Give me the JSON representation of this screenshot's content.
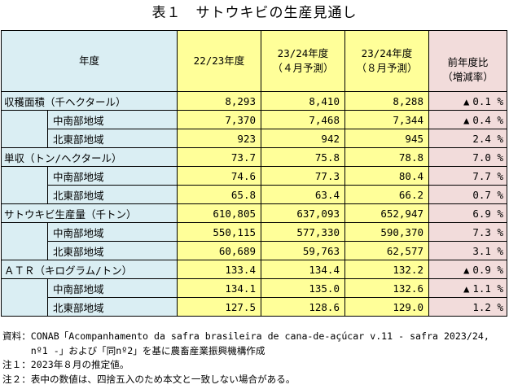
{
  "title": "表１　サトウキビの生産見通し",
  "header": {
    "year": "年度",
    "col1": "22/23年度",
    "col2_line1": "23/24年度",
    "col2_line2": "（４月予測）",
    "col3_line1": "23/24年度",
    "col3_line2": "（８月予測）",
    "col4_line1": "前年度比",
    "col4_line2": "（増減率）"
  },
  "rows": [
    {
      "label": "収穫面積（千ヘクタール）",
      "v1": "8,293",
      "v2": "8,410",
      "v3": "8,288",
      "dir": "▲",
      "chg": "0.1 %"
    },
    {
      "label": "中南部地域",
      "v1": "7,370",
      "v2": "7,468",
      "v3": "7,344",
      "dir": "▲",
      "chg": "0.4 %"
    },
    {
      "label": "北東部地域",
      "v1": "923",
      "v2": "942",
      "v3": "945",
      "dir": "",
      "chg": "2.4 %"
    },
    {
      "label": "単収（トン/ヘクタール）",
      "v1": "73.7",
      "v2": "75.8",
      "v3": "78.8",
      "dir": "",
      "chg": "7.0 %"
    },
    {
      "label": "中南部地域",
      "v1": "74.6",
      "v2": "77.3",
      "v3": "80.4",
      "dir": "",
      "chg": "7.7 %"
    },
    {
      "label": "北東部地域",
      "v1": "65.8",
      "v2": "63.4",
      "v3": "66.2",
      "dir": "",
      "chg": "0.7 %"
    },
    {
      "label": "サトウキビ生産量（千トン）",
      "v1": "610,805",
      "v2": "637,093",
      "v3": "652,947",
      "dir": "",
      "chg": "6.9 %"
    },
    {
      "label": "中南部地域",
      "v1": "550,115",
      "v2": "577,330",
      "v3": "590,370",
      "dir": "",
      "chg": "7.3 %"
    },
    {
      "label": "北東部地域",
      "v1": "60,689",
      "v2": "59,763",
      "v3": "62,577",
      "dir": "",
      "chg": "3.1 %"
    },
    {
      "label": "ＡＴＲ（キログラム/トン）",
      "v1": "133.4",
      "v2": "134.4",
      "v3": "132.2",
      "dir": "▲",
      "chg": "0.9 %"
    },
    {
      "label": "中南部地域",
      "v1": "134.1",
      "v2": "135.0",
      "v3": "132.6",
      "dir": "▲",
      "chg": "1.1 %"
    },
    {
      "label": "北東部地域",
      "v1": "127.5",
      "v2": "128.6",
      "v3": "129.0",
      "dir": "",
      "chg": "1.2 %"
    }
  ],
  "notes": {
    "source_line1": "資料：CONAB「Acompanhamento da safra brasileira de cana-de-açúcar v.11 - safra 2023/24,",
    "source_line2": "　　　nº1 -」および「同nº2」を基に農畜産業振興機構作成",
    "note1": "注１：2023年８月の推定値。",
    "note2": "注２：表中の数値は、四捨五入のため本文と一致しない場合がある。"
  }
}
